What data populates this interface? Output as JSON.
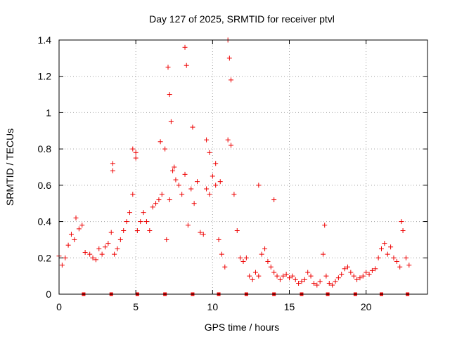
{
  "chart_data": {
    "type": "scatter",
    "title": "Day 127 of 2025, SRMTID for receiver ptvl",
    "xlabel": "GPS time / hours",
    "ylabel": "SRMTID / TECUs",
    "xlim": [
      0,
      24.0
    ],
    "ylim": [
      0,
      1.4
    ],
    "xticks": [
      0,
      5,
      10,
      15,
      20
    ],
    "xtick_labels": [
      "0",
      "5",
      "10",
      "15",
      "20"
    ],
    "yticks": [
      0,
      0.2,
      0.4,
      0.6,
      0.8,
      1.0,
      1.2,
      1.4
    ],
    "ytick_labels": [
      "0",
      "0.2",
      "0.4",
      "0.6",
      "0.8",
      "1",
      "1.2",
      "1.4"
    ],
    "grid": true,
    "point_color": "#ee0000",
    "series": [
      {
        "name": "SRMTID",
        "marker": "plus",
        "x": [
          0.0,
          0.2,
          0.4,
          0.6,
          0.8,
          1.0,
          1.1,
          1.3,
          1.5,
          1.7,
          2.0,
          2.2,
          2.4,
          2.6,
          2.8,
          3.0,
          3.2,
          3.4,
          3.5,
          3.6,
          3.8,
          4.0,
          4.2,
          4.4,
          4.6,
          4.8,
          5.0,
          5.1,
          5.3,
          5.5,
          5.7,
          5.9,
          6.1,
          6.3,
          6.5,
          6.7,
          6.9,
          7.0,
          7.2,
          7.4,
          7.6,
          7.8,
          8.0,
          8.2,
          8.4,
          8.6,
          8.8,
          9.0,
          9.2,
          9.4,
          9.6,
          9.8,
          10.0,
          10.2,
          10.4,
          10.6,
          10.8,
          11.0,
          11.2,
          11.4,
          11.6,
          11.8,
          12.0,
          12.2,
          12.4,
          12.6,
          12.8,
          13.0,
          13.2,
          13.4,
          13.6,
          13.8,
          14.0,
          14.2,
          14.4,
          14.6,
          14.8,
          15.0,
          15.2,
          15.4,
          15.6,
          15.8,
          16.0,
          16.2,
          16.4,
          16.6,
          16.8,
          17.0,
          17.2,
          17.4,
          17.6,
          17.8,
          18.0,
          18.2,
          18.4,
          18.6,
          18.8,
          19.0,
          19.2,
          19.4,
          19.6,
          19.8,
          20.0,
          20.2,
          20.4,
          20.6,
          20.8,
          21.0,
          21.2,
          21.4,
          21.6,
          21.8,
          22.0,
          22.2,
          22.4,
          22.6,
          22.8,
          7.1,
          7.2,
          7.3,
          8.2,
          8.3,
          11.0,
          11.1,
          11.2,
          3.5,
          4.8,
          5.0,
          6.6,
          7.5,
          8.7,
          9.6,
          9.8,
          10.2,
          10.5,
          13.0,
          14.0,
          17.3,
          22.3
        ],
        "y": [
          0.21,
          0.16,
          0.2,
          0.27,
          0.33,
          0.3,
          0.42,
          0.36,
          0.38,
          0.23,
          0.22,
          0.2,
          0.19,
          0.25,
          0.22,
          0.26,
          0.28,
          0.34,
          0.68,
          0.22,
          0.25,
          0.3,
          0.35,
          0.4,
          0.45,
          0.55,
          0.78,
          0.35,
          0.4,
          0.45,
          0.4,
          0.35,
          0.48,
          0.5,
          0.52,
          0.55,
          0.8,
          0.3,
          0.52,
          0.68,
          0.63,
          0.6,
          0.55,
          0.66,
          0.38,
          0.58,
          0.5,
          0.62,
          0.34,
          0.33,
          0.58,
          0.55,
          0.65,
          0.6,
          0.3,
          0.22,
          0.15,
          0.85,
          0.82,
          0.55,
          0.35,
          0.2,
          0.18,
          0.2,
          0.1,
          0.08,
          0.12,
          0.1,
          0.22,
          0.25,
          0.18,
          0.15,
          0.12,
          0.1,
          0.08,
          0.1,
          0.11,
          0.09,
          0.1,
          0.08,
          0.06,
          0.07,
          0.08,
          0.12,
          0.1,
          0.06,
          0.05,
          0.07,
          0.22,
          0.1,
          0.06,
          0.05,
          0.07,
          0.09,
          0.11,
          0.14,
          0.15,
          0.12,
          0.1,
          0.08,
          0.09,
          0.1,
          0.12,
          0.11,
          0.13,
          0.14,
          0.2,
          0.25,
          0.28,
          0.22,
          0.26,
          0.2,
          0.18,
          0.15,
          0.35,
          0.2,
          0.16,
          1.25,
          1.1,
          0.95,
          1.36,
          1.26,
          1.4,
          1.3,
          1.18,
          0.72,
          0.8,
          0.75,
          0.84,
          0.7,
          0.92,
          0.85,
          0.78,
          0.72,
          0.62,
          0.6,
          0.52,
          0.38,
          0.4
        ]
      }
    ],
    "bottom_markers_x": [
      1.6,
      3.4,
      5.1,
      6.9,
      8.7,
      10.4,
      12.2,
      14.0,
      15.8,
      17.5,
      19.3,
      21.0,
      22.7
    ]
  }
}
